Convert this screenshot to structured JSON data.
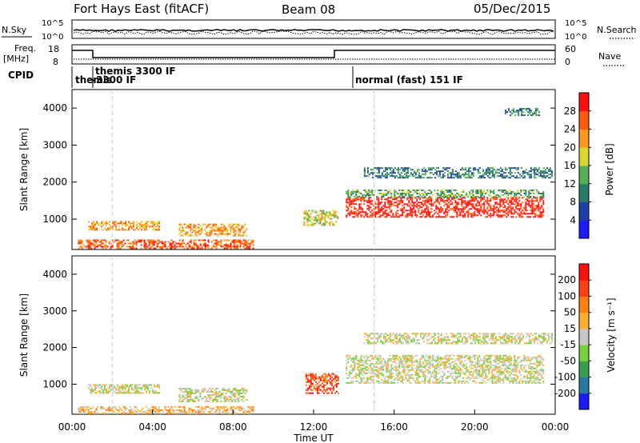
{
  "header": {
    "station": "Fort Hays East (fitACF)",
    "beam": "Beam 08",
    "date": "05/Dec/2015"
  },
  "noise_panel": {
    "left_label": "N.Sky",
    "right_label": "N.Search",
    "ticks_left": [
      "10^5",
      "10^0"
    ],
    "ticks_right": [
      "10^5",
      "10^0"
    ]
  },
  "freq_panel": {
    "left_label_1": "Freq.",
    "left_label_2": "[MHz]",
    "right_label": "Nave",
    "ticks_left": [
      "18",
      "8"
    ],
    "ticks_right": [
      "60",
      "0"
    ]
  },
  "cpid_panel": {
    "label": "CPID",
    "segments": [
      {
        "name": "themis",
        "start_hour": 0
      },
      {
        "name": "themis 3300 IF\n-3300 IF",
        "start_hour": 1
      },
      {
        "name": "normal (fast) 151 IF",
        "start_hour": 14
      }
    ]
  },
  "chart_data": [
    {
      "type": "heatmap",
      "title": "",
      "ylabel": "Slant Range [km]",
      "xlabel": "",
      "x_range_hours": [
        0,
        24
      ],
      "ylim": [
        180,
        4500
      ],
      "y_ticks": [
        1000,
        2000,
        3000,
        4000
      ],
      "colorbar": {
        "label": "Power [dB]",
        "ticks": [
          "4",
          "8",
          "12",
          "16",
          "20",
          "24",
          "28"
        ],
        "colors": [
          "#1a1aff",
          "#1f3fa8",
          "#2a7a6a",
          "#55b055",
          "#d8d830",
          "#ff9a20",
          "#ff5a10",
          "#ff1010"
        ]
      },
      "regions": [
        {
          "x": [
            0.3,
            9.0
          ],
          "y": [
            200,
            450
          ],
          "level": 6
        },
        {
          "x": [
            0.8,
            4.3
          ],
          "y": [
            700,
            950
          ],
          "level": 5
        },
        {
          "x": [
            5.3,
            8.7
          ],
          "y": [
            550,
            880
          ],
          "level": 5
        },
        {
          "x": [
            11.5,
            13.2
          ],
          "y": [
            850,
            1250
          ],
          "level": 4
        },
        {
          "x": [
            13.6,
            23.4
          ],
          "y": [
            1050,
            1600
          ],
          "level": 7
        },
        {
          "x": [
            13.6,
            23.4
          ],
          "y": [
            1600,
            1800
          ],
          "level": 3
        },
        {
          "x": [
            14.5,
            23.8
          ],
          "y": [
            2100,
            2400
          ],
          "level": 2
        },
        {
          "x": [
            21.5,
            23.2
          ],
          "y": [
            3800,
            4000
          ],
          "level": 2
        }
      ]
    },
    {
      "type": "heatmap",
      "title": "",
      "ylabel": "Slant Range [km]",
      "xlabel": "Time UT",
      "x_range_hours": [
        0,
        24
      ],
      "ylim": [
        180,
        4500
      ],
      "y_ticks": [
        1000,
        2000,
        3000,
        4000
      ],
      "x_ticks": [
        "00:00",
        "04:00",
        "08:00",
        "12:00",
        "16:00",
        "20:00",
        "00:00"
      ],
      "colorbar": {
        "label": "Velocity [m s⁻¹]",
        "ticks": [
          "200",
          "100",
          "50",
          "15",
          "-15",
          "-50",
          "-100",
          "-200"
        ],
        "colors": [
          "#1a1aff",
          "#2a7aa0",
          "#3aa050",
          "#78d040",
          "#c8c8c8",
          "#ffb030",
          "#ff8010",
          "#ff4010",
          "#ff1010"
        ]
      },
      "regions": [
        {
          "x": [
            0.3,
            9.0
          ],
          "y": [
            200,
            400
          ],
          "level": 5
        },
        {
          "x": [
            0.8,
            4.3
          ],
          "y": [
            750,
            1000
          ],
          "level": 4
        },
        {
          "x": [
            5.3,
            8.7
          ],
          "y": [
            550,
            900
          ],
          "level": 4
        },
        {
          "x": [
            11.6,
            13.2
          ],
          "y": [
            750,
            1300
          ],
          "level": 7
        },
        {
          "x": [
            13.6,
            23.4
          ],
          "y": [
            1050,
            1800
          ],
          "level": 4
        },
        {
          "x": [
            14.5,
            23.8
          ],
          "y": [
            2100,
            2400
          ],
          "level": 4
        }
      ]
    }
  ]
}
